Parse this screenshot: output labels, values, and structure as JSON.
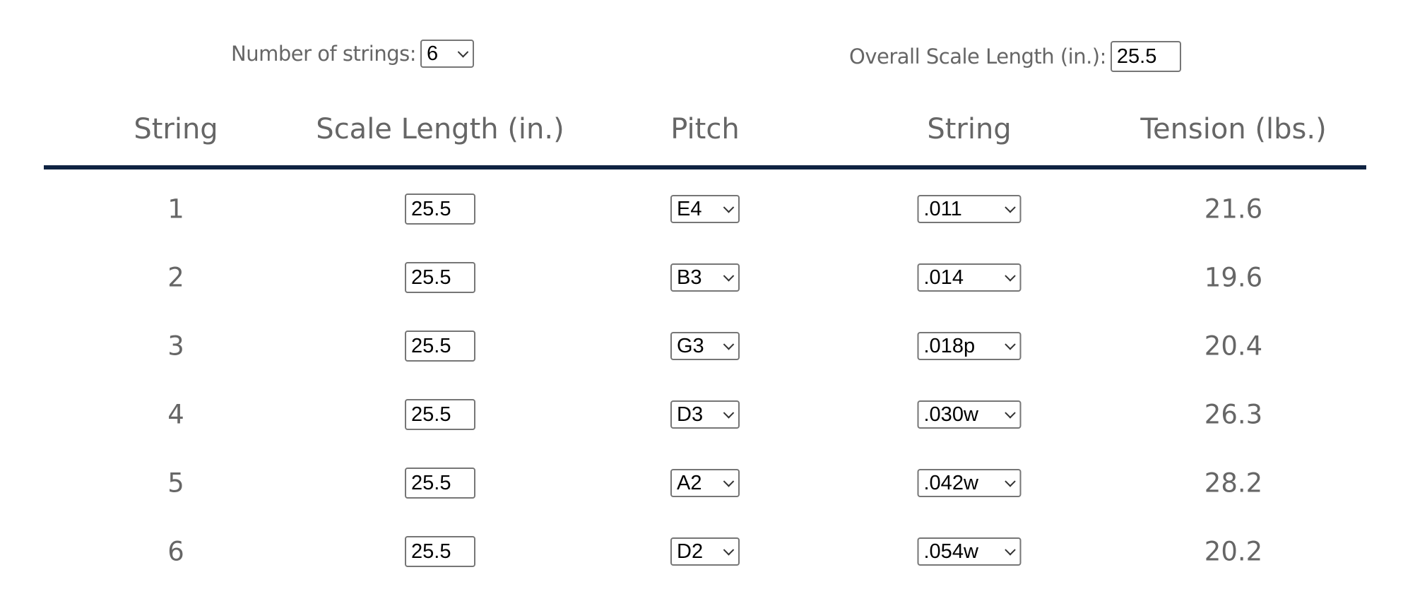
{
  "controls": {
    "num_strings_label": "Number of strings:",
    "num_strings_value": "6",
    "scale_label": "Overall Scale Length (in.):",
    "scale_value": "25.5"
  },
  "headers": [
    "String",
    "Scale Length (in.)",
    "Pitch",
    "String",
    "Tension (lbs.)"
  ],
  "rows": [
    {
      "string": "1",
      "scale": "25.5",
      "pitch": "E4",
      "gauge": ".011",
      "tension": "21.6"
    },
    {
      "string": "2",
      "scale": "25.5",
      "pitch": "B3",
      "gauge": ".014",
      "tension": "19.6"
    },
    {
      "string": "3",
      "scale": "25.5",
      "pitch": "G3",
      "gauge": ".018p",
      "tension": "20.4"
    },
    {
      "string": "4",
      "scale": "25.5",
      "pitch": "D3",
      "gauge": ".030w",
      "tension": "26.3"
    },
    {
      "string": "5",
      "scale": "25.5",
      "pitch": "A2",
      "gauge": ".042w",
      "tension": "28.2"
    },
    {
      "string": "6",
      "scale": "25.5",
      "pitch": "D2",
      "gauge": ".054w",
      "tension": "20.2"
    }
  ],
  "colors": {
    "rule": "#0f2342",
    "text": "#666666"
  }
}
